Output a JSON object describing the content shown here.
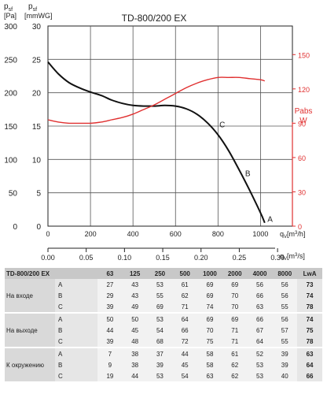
{
  "chart_data": {
    "type": "line",
    "title": "TD-800/200 EX",
    "left_axis_pa": {
      "unit_line1": "p",
      "unit_sub": "sf",
      "unit_line2": "[Pa]",
      "ticks": [
        0,
        50,
        100,
        150,
        200,
        250,
        300
      ],
      "range": [
        0,
        300
      ]
    },
    "left_axis_mmwg": {
      "unit_line1": "p",
      "unit_sub": "sf",
      "unit_line2": "[mmWG]",
      "ticks": [
        0,
        5,
        10,
        15,
        20,
        25,
        30
      ],
      "range": [
        0,
        30
      ]
    },
    "right_axis_w": {
      "label_line1": "Pabs",
      "label_line2": "W",
      "ticks": [
        0,
        30,
        60,
        90,
        120,
        150
      ],
      "range": [
        0,
        175
      ],
      "color": "#e03030"
    },
    "x_axis_m3h": {
      "label": "qv [m3/h]",
      "label_q": "q",
      "label_sub": "V",
      "label_unit": "[m",
      "label_sup": "3",
      "label_end": "/h]",
      "ticks": [
        0,
        200,
        400,
        600,
        800,
        1000
      ],
      "range": [
        0,
        1150
      ]
    },
    "x_axis_m3s": {
      "label": "qv [m3/s]",
      "label_q": "q",
      "label_sub": "V",
      "label_unit": "[m",
      "label_sup": "3",
      "label_end": "/s]",
      "ticks": [
        "0.00",
        "0.05",
        "0.10",
        "0.15",
        "0.20",
        "0.25",
        "0.30"
      ],
      "range": [
        0,
        0.3194
      ]
    },
    "grid": true,
    "series": [
      {
        "axis": "pressure_pa",
        "color": "#111111",
        "points": [
          [
            0,
            246
          ],
          [
            50,
            228
          ],
          [
            100,
            215
          ],
          [
            150,
            207
          ],
          [
            200,
            201
          ],
          [
            250,
            196
          ],
          [
            300,
            189
          ],
          [
            350,
            184
          ],
          [
            400,
            181
          ],
          [
            450,
            180
          ],
          [
            500,
            180
          ],
          [
            550,
            181
          ],
          [
            600,
            180
          ],
          [
            650,
            176
          ],
          [
            700,
            168
          ],
          [
            750,
            155
          ],
          [
            800,
            137
          ],
          [
            850,
            113
          ],
          [
            900,
            84
          ],
          [
            950,
            53
          ],
          [
            1000,
            20
          ],
          [
            1020,
            5
          ]
        ]
      },
      {
        "axis": "power_w",
        "color": "#e03030",
        "points": [
          [
            0,
            93
          ],
          [
            50,
            91
          ],
          [
            100,
            90
          ],
          [
            150,
            90
          ],
          [
            200,
            90
          ],
          [
            250,
            91
          ],
          [
            300,
            93
          ],
          [
            350,
            95
          ],
          [
            400,
            98
          ],
          [
            450,
            102
          ],
          [
            500,
            106
          ],
          [
            550,
            111
          ],
          [
            600,
            116
          ],
          [
            650,
            121
          ],
          [
            700,
            125
          ],
          [
            750,
            128
          ],
          [
            800,
            130
          ],
          [
            850,
            130
          ],
          [
            900,
            130
          ],
          [
            950,
            129
          ],
          [
            1000,
            128
          ],
          [
            1020,
            127
          ]
        ]
      }
    ],
    "annotations": [
      {
        "text": "C",
        "x": 820,
        "y": 153
      },
      {
        "text": "B",
        "x": 940,
        "y": 80
      },
      {
        "text": "A",
        "x": 1045,
        "y": 11
      }
    ]
  },
  "sound_table": {
    "model": "TD-800/200 EX",
    "bands": [
      "63",
      "125",
      "250",
      "500",
      "1000",
      "2000",
      "4000",
      "8000"
    ],
    "lwa_header": "LwA",
    "groups": [
      {
        "name": "На входе",
        "rows": [
          {
            "label": "A",
            "values": [
              "27",
              "43",
              "53",
              "61",
              "69",
              "69",
              "56",
              "56"
            ],
            "lwa": "73"
          },
          {
            "label": "B",
            "values": [
              "29",
              "43",
              "55",
              "62",
              "69",
              "70",
              "66",
              "56"
            ],
            "lwa": "74"
          },
          {
            "label": "C",
            "values": [
              "39",
              "49",
              "69",
              "71",
              "74",
              "70",
              "63",
              "55"
            ],
            "lwa": "78"
          }
        ]
      },
      {
        "name": "На выходе",
        "rows": [
          {
            "label": "A",
            "values": [
              "50",
              "50",
              "53",
              "64",
              "69",
              "69",
              "66",
              "56"
            ],
            "lwa": "74"
          },
          {
            "label": "B",
            "values": [
              "44",
              "45",
              "54",
              "66",
              "70",
              "71",
              "67",
              "57"
            ],
            "lwa": "75"
          },
          {
            "label": "C",
            "values": [
              "39",
              "48",
              "68",
              "72",
              "75",
              "71",
              "64",
              "55"
            ],
            "lwa": "78"
          }
        ]
      },
      {
        "name": "К окружению",
        "rows": [
          {
            "label": "A",
            "values": [
              "7",
              "38",
              "37",
              "44",
              "58",
              "61",
              "52",
              "39"
            ],
            "lwa": "63"
          },
          {
            "label": "B",
            "values": [
              "9",
              "38",
              "39",
              "45",
              "58",
              "62",
              "53",
              "39"
            ],
            "lwa": "64"
          },
          {
            "label": "C",
            "values": [
              "19",
              "44",
              "53",
              "54",
              "63",
              "62",
              "53",
              "40"
            ],
            "lwa": "66"
          }
        ]
      }
    ]
  }
}
